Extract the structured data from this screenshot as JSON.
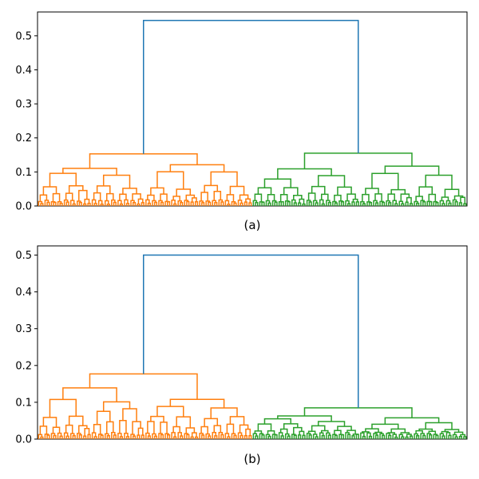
{
  "chart_data": [
    {
      "type": "dendrogram",
      "caption": "(a)",
      "ylim": [
        0,
        0.57
      ],
      "yticks": [
        "0.0",
        "0.1",
        "0.2",
        "0.3",
        "0.4",
        "0.5"
      ],
      "ytick_values": [
        0,
        0.1,
        0.2,
        0.3,
        0.4,
        0.5
      ],
      "grid": false,
      "legend": "none",
      "leaf_count": 200,
      "root_height": 0.545,
      "clusters": [
        {
          "name": "",
          "color": "#ff7f0e",
          "leaves": 100,
          "top_height": 0.153,
          "sub_heights": [
            0.122,
            0.128
          ]
        },
        {
          "name": "",
          "color": "#2ca02c",
          "leaves": 100,
          "top_height": 0.155,
          "sub_heights": [
            0.12,
            0.132
          ]
        }
      ],
      "root_color": "#1f77b4"
    },
    {
      "type": "dendrogram",
      "caption": "(b)",
      "ylim": [
        0,
        0.525
      ],
      "yticks": [
        "0.0",
        "0.1",
        "0.2",
        "0.3",
        "0.4",
        "0.5"
      ],
      "ytick_values": [
        0,
        0.1,
        0.2,
        0.3,
        0.4,
        0.5
      ],
      "grid": false,
      "legend": "none",
      "leaf_count": 200,
      "root_height": 0.5,
      "clusters": [
        {
          "name": "",
          "color": "#ff7f0e",
          "leaves": 100,
          "top_height": 0.177,
          "sub_heights": [
            0.14,
            0.122
          ]
        },
        {
          "name": "",
          "color": "#2ca02c",
          "leaves": 100,
          "top_height": 0.085,
          "sub_heights": [
            0.068,
            0.06
          ]
        }
      ],
      "root_color": "#1f77b4"
    }
  ]
}
